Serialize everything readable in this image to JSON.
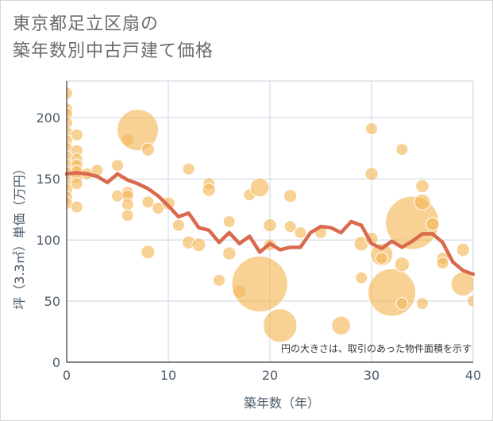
{
  "chart_data": {
    "type": "scatter",
    "title_lines": [
      "東京都足立区扇の",
      "築年数別中古戸建て価格"
    ],
    "xlabel": "築年数（年）",
    "ylabel": "坪（3.3㎡）単価（万円）",
    "xlim": [
      0,
      40
    ],
    "ylim": [
      0,
      230
    ],
    "x_ticks": [
      0,
      10,
      20,
      30,
      40
    ],
    "y_ticks": [
      0,
      50,
      100,
      150,
      200
    ],
    "grid": true,
    "annotation": "円の大きさは、取引のあった物件面積を示す",
    "colors": {
      "bubble": "#f5b95a",
      "line": "#d96a4e",
      "grid": "#c8d4e0"
    },
    "bubbles": [
      {
        "x": 0,
        "y": 220,
        "s": 1
      },
      {
        "x": 0,
        "y": 207,
        "s": 1
      },
      {
        "x": 0,
        "y": 203,
        "s": 1
      },
      {
        "x": 0,
        "y": 196,
        "s": 1
      },
      {
        "x": 0,
        "y": 188,
        "s": 1
      },
      {
        "x": 0,
        "y": 181,
        "s": 1
      },
      {
        "x": 0,
        "y": 175,
        "s": 1
      },
      {
        "x": 0,
        "y": 168,
        "s": 1
      },
      {
        "x": 0,
        "y": 161,
        "s": 1
      },
      {
        "x": 0,
        "y": 155,
        "s": 1
      },
      {
        "x": 0,
        "y": 148,
        "s": 1
      },
      {
        "x": 0,
        "y": 141,
        "s": 1
      },
      {
        "x": 0,
        "y": 135,
        "s": 1
      },
      {
        "x": 0,
        "y": 130,
        "s": 1
      },
      {
        "x": 1,
        "y": 186,
        "s": 1
      },
      {
        "x": 1,
        "y": 173,
        "s": 1
      },
      {
        "x": 1,
        "y": 166,
        "s": 1
      },
      {
        "x": 1,
        "y": 161,
        "s": 1
      },
      {
        "x": 1,
        "y": 156,
        "s": 1
      },
      {
        "x": 1,
        "y": 151,
        "s": 1
      },
      {
        "x": 1,
        "y": 146,
        "s": 1
      },
      {
        "x": 1,
        "y": 127,
        "s": 1
      },
      {
        "x": 2,
        "y": 154,
        "s": 1
      },
      {
        "x": 3,
        "y": 157,
        "s": 1
      },
      {
        "x": 5,
        "y": 161,
        "s": 1
      },
      {
        "x": 5,
        "y": 136,
        "s": 1
      },
      {
        "x": 6,
        "y": 182,
        "s": 1
      },
      {
        "x": 6,
        "y": 139,
        "s": 1
      },
      {
        "x": 6,
        "y": 136,
        "s": 1
      },
      {
        "x": 6,
        "y": 129,
        "s": 1
      },
      {
        "x": 6,
        "y": 120,
        "s": 1
      },
      {
        "x": 7,
        "y": 190,
        "s": 12
      },
      {
        "x": 8,
        "y": 174,
        "s": 1.2
      },
      {
        "x": 8,
        "y": 131,
        "s": 1
      },
      {
        "x": 8,
        "y": 90,
        "s": 1.3
      },
      {
        "x": 9,
        "y": 126,
        "s": 1
      },
      {
        "x": 10,
        "y": 130,
        "s": 1.2
      },
      {
        "x": 11,
        "y": 112,
        "s": 1
      },
      {
        "x": 12,
        "y": 158,
        "s": 1
      },
      {
        "x": 12,
        "y": 98,
        "s": 1.2
      },
      {
        "x": 13,
        "y": 96,
        "s": 1.3
      },
      {
        "x": 14,
        "y": 146,
        "s": 1
      },
      {
        "x": 14,
        "y": 141,
        "s": 1.2
      },
      {
        "x": 15,
        "y": 67,
        "s": 1
      },
      {
        "x": 16,
        "y": 115,
        "s": 1
      },
      {
        "x": 16,
        "y": 89,
        "s": 1.2
      },
      {
        "x": 17,
        "y": 58,
        "s": 1.2
      },
      {
        "x": 18,
        "y": 137,
        "s": 1
      },
      {
        "x": 19,
        "y": 143,
        "s": 2.5
      },
      {
        "x": 19,
        "y": 64,
        "s": 22
      },
      {
        "x": 20,
        "y": 112,
        "s": 1.2
      },
      {
        "x": 20,
        "y": 96,
        "s": 1
      },
      {
        "x": 21,
        "y": 30,
        "s": 8
      },
      {
        "x": 22,
        "y": 136,
        "s": 1.2
      },
      {
        "x": 22,
        "y": 111,
        "s": 1
      },
      {
        "x": 23,
        "y": 106,
        "s": 1
      },
      {
        "x": 25,
        "y": 106,
        "s": 1
      },
      {
        "x": 27,
        "y": 30,
        "s": 2.5
      },
      {
        "x": 29,
        "y": 97,
        "s": 1.5
      },
      {
        "x": 29,
        "y": 69,
        "s": 1
      },
      {
        "x": 30,
        "y": 191,
        "s": 1
      },
      {
        "x": 30,
        "y": 154,
        "s": 1.2
      },
      {
        "x": 30,
        "y": 101,
        "s": 1.2
      },
      {
        "x": 31,
        "y": 88,
        "s": 3.5
      },
      {
        "x": 31,
        "y": 85,
        "s": 1
      },
      {
        "x": 32,
        "y": 57,
        "s": 16
      },
      {
        "x": 33,
        "y": 174,
        "s": 1
      },
      {
        "x": 33,
        "y": 80,
        "s": 1.5
      },
      {
        "x": 33,
        "y": 48,
        "s": 1
      },
      {
        "x": 34,
        "y": 114,
        "s": 20
      },
      {
        "x": 35,
        "y": 144,
        "s": 1.2
      },
      {
        "x": 35,
        "y": 131,
        "s": 1.8
      },
      {
        "x": 35,
        "y": 48,
        "s": 1
      },
      {
        "x": 36,
        "y": 113,
        "s": 1.2
      },
      {
        "x": 37,
        "y": 85,
        "s": 1
      },
      {
        "x": 37,
        "y": 81,
        "s": 1
      },
      {
        "x": 39,
        "y": 92,
        "s": 1.2
      },
      {
        "x": 39,
        "y": 64,
        "s": 4
      },
      {
        "x": 40,
        "y": 50,
        "s": 1
      }
    ],
    "series": [
      {
        "x": [
          0,
          1,
          2,
          3,
          4,
          5,
          6,
          7,
          8,
          9,
          10,
          11,
          12,
          13,
          14,
          15,
          16,
          17,
          18,
          19,
          20,
          21,
          22,
          23,
          24,
          25,
          26,
          27,
          28,
          29,
          30,
          31,
          32,
          33,
          34,
          35,
          36,
          37,
          38,
          39,
          40
        ],
        "y": [
          154,
          155,
          154,
          152,
          147,
          154,
          149,
          146,
          142,
          136,
          128,
          119,
          122,
          110,
          108,
          98,
          106,
          97,
          103,
          90,
          97,
          92,
          94,
          94,
          106,
          111,
          110,
          106,
          115,
          112,
          97,
          93,
          99,
          94,
          99,
          105,
          105,
          98,
          82,
          75,
          72
        ]
      }
    ]
  }
}
